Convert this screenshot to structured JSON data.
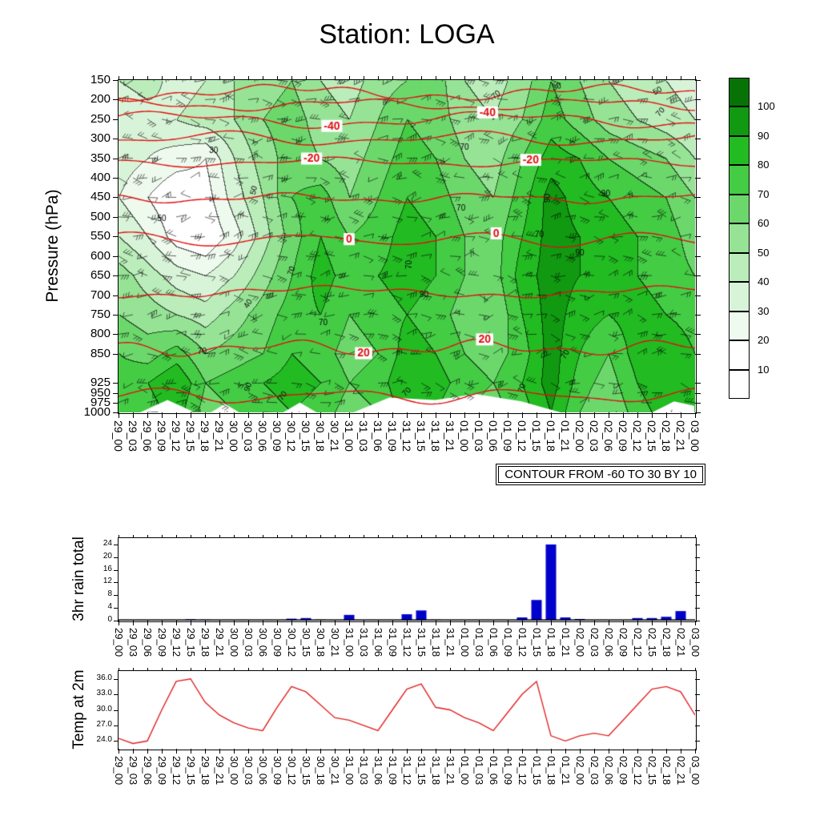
{
  "title": "Station: LOGA",
  "time_labels": [
    "29_00",
    "29_03",
    "29_06",
    "29_09",
    "29_12",
    "29_15",
    "29_18",
    "29_21",
    "30_00",
    "30_03",
    "30_06",
    "30_09",
    "30_12",
    "30_15",
    "30_18",
    "30_21",
    "31_00",
    "31_03",
    "31_06",
    "31_09",
    "31_12",
    "31_15",
    "31_18",
    "31_21",
    "01_00",
    "01_03",
    "01_06",
    "01_09",
    "01_12",
    "01_15",
    "01_18",
    "01_21",
    "02_00",
    "02_03",
    "02_06",
    "02_09",
    "02_12",
    "02_15",
    "02_18",
    "02_21",
    "03_00"
  ],
  "chart_data": [
    {
      "type": "heatmap",
      "name": "pressure-time cross section: relative humidity shading, red temperature contours, wind barbs",
      "ylabel": "Pressure (hPa)",
      "y_ticks": [
        150,
        200,
        250,
        300,
        350,
        400,
        450,
        500,
        550,
        600,
        650,
        700,
        750,
        800,
        850,
        925,
        950,
        975,
        1000
      ],
      "x_categories_ref": "time_labels",
      "contour_note": "CONTOUR FROM -60 TO 30 BY 10",
      "colorbar": {
        "levels": [
          10,
          20,
          30,
          40,
          50,
          60,
          70,
          80,
          90,
          100
        ],
        "colors": [
          "#ffffff",
          "#ffffff",
          "#eefaee",
          "#d8f4d8",
          "#baedba",
          "#96e396",
          "#6cd86c",
          "#44cc44",
          "#22bb22",
          "#119911",
          "#077307"
        ]
      },
      "rh_grid": {
        "pressures": [
          150,
          250,
          350,
          450,
          550,
          650,
          750,
          850,
          925,
          1000
        ],
        "values": [
          [
            40,
            45,
            35,
            40,
            50,
            55,
            60,
            50,
            45,
            55,
            60,
            65,
            50,
            45,
            55,
            70,
            60,
            50,
            45,
            40,
            35
          ],
          [
            30,
            35,
            40,
            45,
            50,
            60,
            65,
            55,
            50,
            60,
            70,
            65,
            55,
            50,
            60,
            75,
            65,
            55,
            50,
            45,
            40
          ],
          [
            35,
            30,
            25,
            20,
            40,
            55,
            65,
            60,
            55,
            65,
            75,
            70,
            60,
            55,
            70,
            85,
            80,
            70,
            65,
            60,
            50
          ],
          [
            30,
            20,
            10,
            15,
            35,
            50,
            70,
            75,
            60,
            70,
            80,
            75,
            65,
            60,
            75,
            95,
            85,
            80,
            75,
            70,
            60
          ],
          [
            40,
            30,
            15,
            10,
            25,
            45,
            65,
            80,
            70,
            75,
            85,
            80,
            70,
            65,
            80,
            95,
            90,
            85,
            80,
            75,
            65
          ],
          [
            55,
            45,
            35,
            30,
            40,
            55,
            70,
            85,
            75,
            80,
            85,
            80,
            70,
            65,
            85,
            95,
            90,
            85,
            80,
            75,
            70
          ],
          [
            60,
            55,
            50,
            45,
            55,
            65,
            75,
            80,
            70,
            75,
            80,
            75,
            65,
            60,
            80,
            95,
            85,
            80,
            85,
            80,
            75
          ],
          [
            70,
            65,
            75,
            60,
            65,
            70,
            80,
            75,
            65,
            70,
            85,
            80,
            70,
            65,
            75,
            95,
            80,
            70,
            85,
            90,
            80
          ],
          [
            75,
            80,
            90,
            70,
            75,
            80,
            85,
            80,
            70,
            75,
            90,
            85,
            75,
            70,
            80,
            95,
            75,
            65,
            80,
            90,
            85
          ],
          [
            70,
            75,
            85,
            65,
            70,
            75,
            80,
            75,
            65,
            70,
            85,
            80,
            70,
            65,
            75,
            90,
            70,
            60,
            75,
            85,
            80
          ]
        ]
      },
      "temp_contours": [
        {
          "value": -60,
          "pressure": 182,
          "labels": []
        },
        {
          "value": -50,
          "pressure": 213,
          "labels": []
        },
        {
          "value": -40,
          "pressure": 252,
          "labels": [
            0.37,
            0.64
          ]
        },
        {
          "value": -30,
          "pressure": 300,
          "labels": []
        },
        {
          "value": -20,
          "pressure": 360,
          "labels": [
            0.335,
            0.715
          ]
        },
        {
          "value": -10,
          "pressure": 452,
          "labels": []
        },
        {
          "value": 0,
          "pressure": 558,
          "labels": [
            0.4,
            0.655
          ]
        },
        {
          "value": 10,
          "pressure": 692,
          "labels": []
        },
        {
          "value": 20,
          "pressure": 835,
          "labels": [
            0.425,
            0.635
          ]
        },
        {
          "value": 30,
          "pressure": 958,
          "labels": []
        }
      ],
      "point_labels": [
        {
          "t": "30",
          "u": 0.165,
          "p": 330,
          "r": 0
        },
        {
          "t": "50",
          "u": 0.075,
          "p": 505,
          "r": 0
        },
        {
          "t": "50",
          "u": 0.235,
          "p": 432,
          "r": -75
        },
        {
          "t": "70",
          "u": 0.3,
          "p": 638,
          "r": -70
        },
        {
          "t": "40",
          "u": 0.225,
          "p": 722,
          "r": -60
        },
        {
          "t": "70",
          "u": 0.145,
          "p": 845,
          "r": 0
        },
        {
          "t": "90",
          "u": 0.225,
          "p": 935,
          "r": -70
        },
        {
          "t": "70",
          "u": 0.285,
          "p": 958,
          "r": -55
        },
        {
          "t": "70",
          "u": 0.355,
          "p": 772,
          "r": 0
        },
        {
          "t": "90",
          "u": 0.53,
          "p": 700,
          "r": 0
        },
        {
          "t": "70",
          "u": 0.505,
          "p": 622,
          "r": -90
        },
        {
          "t": "70",
          "u": 0.5,
          "p": 948,
          "r": -45
        },
        {
          "t": "70",
          "u": 0.6,
          "p": 322,
          "r": 0
        },
        {
          "t": "70",
          "u": 0.594,
          "p": 478,
          "r": 0
        },
        {
          "t": "90",
          "u": 0.745,
          "p": 452,
          "r": -90
        },
        {
          "t": "70",
          "u": 0.73,
          "p": 545,
          "r": 0
        },
        {
          "t": "90",
          "u": 0.8,
          "p": 592,
          "r": 0
        },
        {
          "t": "70",
          "u": 0.775,
          "p": 852,
          "r": -60
        },
        {
          "t": "70",
          "u": 0.7,
          "p": 938,
          "r": -70
        },
        {
          "t": "90",
          "u": 0.845,
          "p": 442,
          "r": 0
        },
        {
          "t": "70",
          "u": 0.655,
          "p": 188,
          "r": -40
        },
        {
          "t": "30",
          "u": 0.76,
          "p": 168,
          "r": -20
        },
        {
          "t": "50",
          "u": 0.935,
          "p": 178,
          "r": -30
        },
        {
          "t": "70",
          "u": 0.94,
          "p": 232,
          "r": -50
        }
      ],
      "surface_mask": [
        [
          [
            0.4,
            1005
          ],
          [
            0.47,
            962
          ],
          [
            0.55,
            968
          ],
          [
            0.62,
            953
          ],
          [
            0.7,
            972
          ],
          [
            0.78,
            1005
          ]
        ],
        [
          [
            0.03,
            1005
          ],
          [
            0.085,
            968
          ],
          [
            0.14,
            1005
          ]
        ],
        [
          [
            0.28,
            1005
          ],
          [
            0.315,
            975
          ],
          [
            0.35,
            1005
          ]
        ],
        [
          [
            0.155,
            1005
          ],
          [
            0.185,
            978
          ],
          [
            0.215,
            1005
          ]
        ],
        [
          [
            0.92,
            1005
          ],
          [
            0.965,
            972
          ],
          [
            1.0,
            983
          ],
          [
            1.0,
            1005
          ]
        ]
      ]
    },
    {
      "type": "bar",
      "ylabel": "3hr rain total",
      "y_ticks": [
        0,
        4,
        8,
        12,
        16,
        20,
        24
      ],
      "ylim": [
        0,
        26
      ],
      "bar_color": "#0000cc",
      "x_categories_ref": "time_labels",
      "values": [
        0,
        0,
        0,
        0,
        0,
        0.4,
        0.3,
        0,
        0,
        0,
        0,
        0,
        0.6,
        0.8,
        0.3,
        0,
        1.8,
        0,
        0,
        0,
        2.0,
        3.2,
        0.3,
        0,
        0,
        0,
        0,
        0,
        1.0,
        6.5,
        24,
        1.0,
        0.5,
        0,
        0,
        0,
        0.8,
        0.8,
        1.2,
        3.0,
        0
      ]
    },
    {
      "type": "line",
      "ylabel": "Temp at 2m",
      "y_ticks": [
        24,
        27,
        30,
        33,
        36
      ],
      "y_tick_labels": [
        "24.0",
        "27.0",
        "30.0",
        "33.0",
        "36.0"
      ],
      "ylim": [
        22.5,
        37.5
      ],
      "line_color": "#e02020",
      "x_categories_ref": "time_labels",
      "values": [
        24.5,
        23.5,
        24.0,
        30.0,
        35.5,
        36.0,
        31.5,
        29.0,
        27.5,
        26.5,
        26.0,
        30.5,
        34.5,
        33.5,
        31.0,
        28.5,
        28.0,
        27.0,
        26.0,
        30.0,
        34.0,
        35.0,
        30.5,
        30.0,
        28.5,
        27.5,
        26.0,
        29.5,
        33.0,
        35.5,
        25.0,
        24.0,
        25.0,
        25.5,
        25.0,
        28.0,
        31.0,
        34.0,
        34.5,
        33.5,
        29.0
      ]
    }
  ]
}
